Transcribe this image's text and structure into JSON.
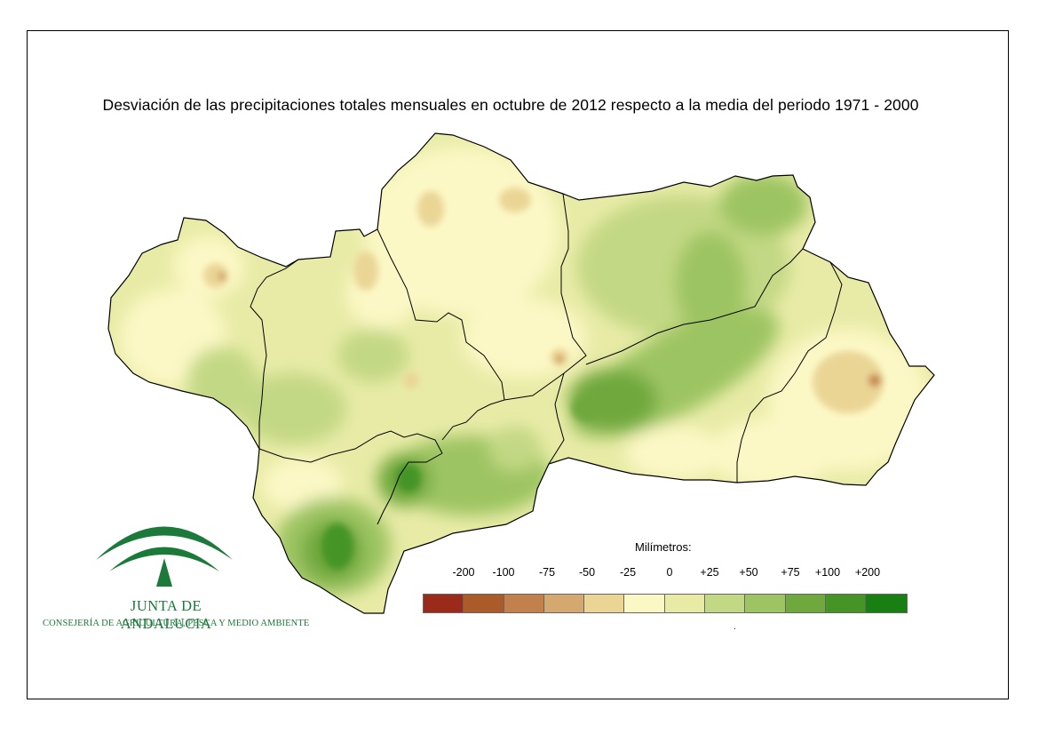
{
  "map": {
    "title": "Desviación de las precipitaciones totales mensuales en octubre de 2012 respecto a la media del periodo 1971 - 2000"
  },
  "legend": {
    "title": "Milímetros:",
    "labels": [
      "-200",
      "-100",
      "-75",
      "-50",
      "-25",
      "0",
      "+25",
      "+50",
      "+75",
      "+100",
      "+200"
    ],
    "colors": [
      "#9c2a1a",
      "#ab5a2a",
      "#c2814c",
      "#d4a86e",
      "#ead595",
      "#fcf8c6",
      "#e8eba6",
      "#c3d884",
      "#9dc462",
      "#6fa83c",
      "#459425",
      "#188013"
    ],
    "footnote": "."
  },
  "logo": {
    "org": "JUNTA DE ANDALUCIA",
    "department": "CONSEJERÍA DE AGRICULTURA, PESCA Y MEDIO AMBIENTE"
  }
}
